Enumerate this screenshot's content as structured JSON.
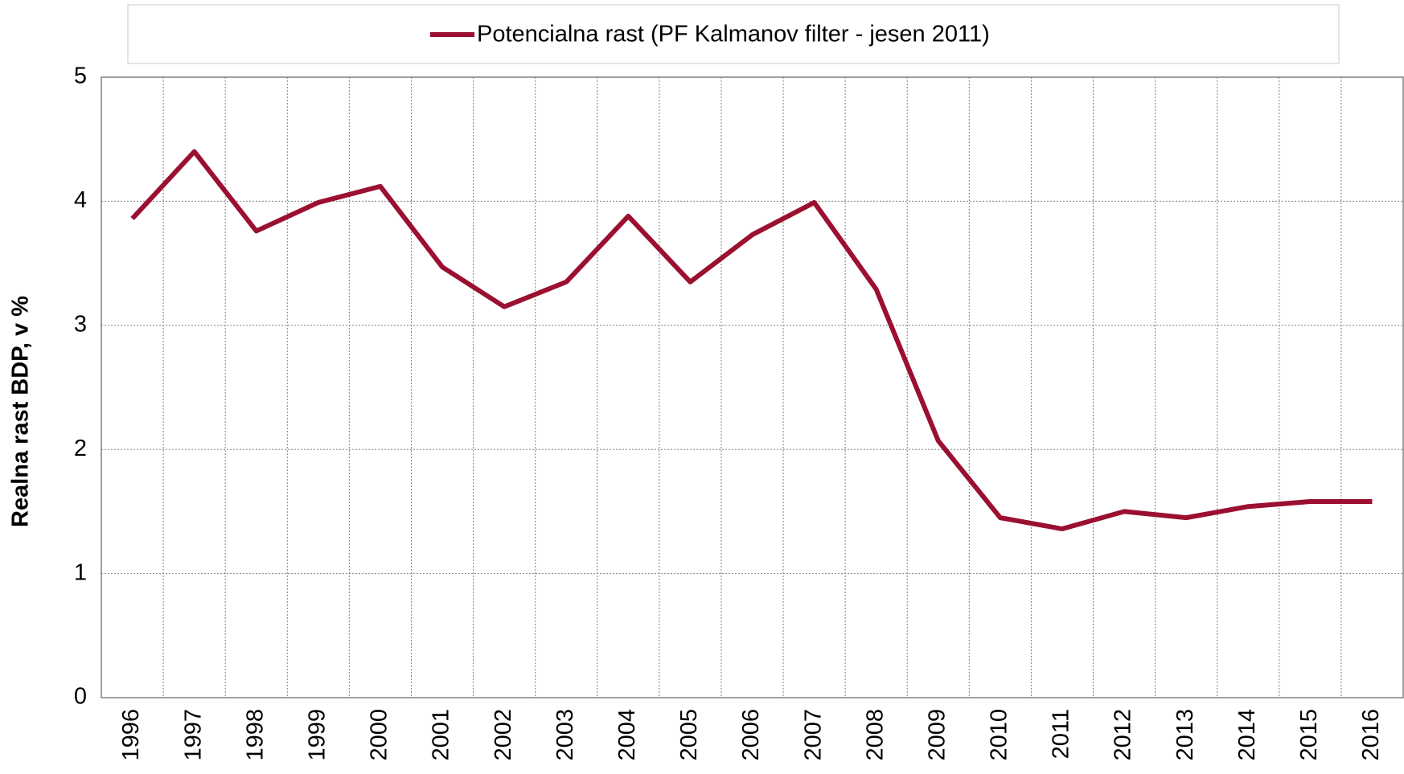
{
  "chart_data": {
    "type": "line",
    "ylabel": "Realna rast BDP, v %",
    "categories": [
      "1996",
      "1997",
      "1998",
      "1999",
      "2000",
      "2001",
      "2002",
      "2003",
      "2004",
      "2005",
      "2006",
      "2007",
      "2008",
      "2009",
      "2010",
      "2011",
      "2012",
      "2013",
      "2014",
      "2015",
      "2016"
    ],
    "series": [
      {
        "name": "Potencialna rast (PF Kalmanov filter - jesen 2011)",
        "color": "#9b1030",
        "values": [
          3.86,
          4.4,
          3.76,
          3.99,
          4.12,
          3.47,
          3.15,
          3.35,
          3.88,
          3.35,
          3.73,
          3.99,
          3.29,
          2.07,
          1.45,
          1.36,
          1.5,
          1.45,
          1.54,
          1.58,
          1.58
        ]
      }
    ],
    "ylim": [
      0,
      5
    ],
    "yticks": [
      0,
      1,
      2,
      3,
      4,
      5
    ],
    "grid": true,
    "legend": "top"
  }
}
